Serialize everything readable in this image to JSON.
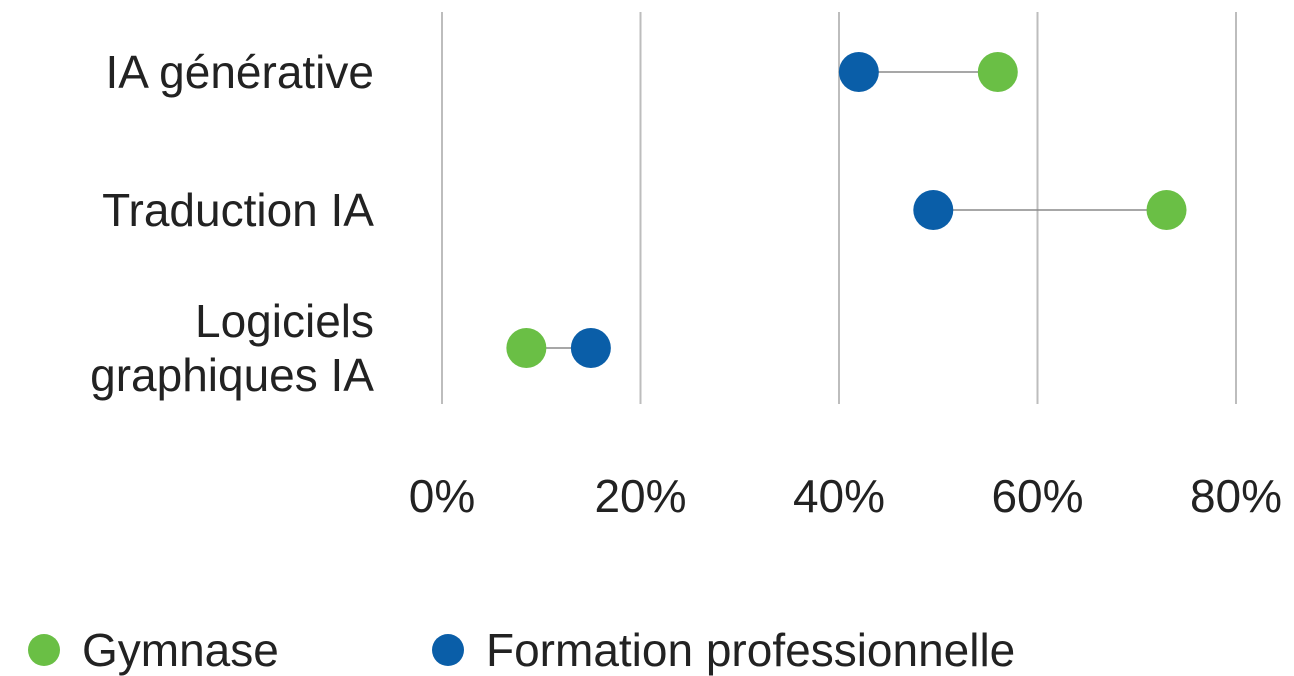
{
  "chart_data": {
    "type": "dot-plot",
    "categories": [
      "IA générative",
      "Traduction IA",
      "Logiciels graphiques IA"
    ],
    "category_lines": [
      [
        "IA générative"
      ],
      [
        "Traduction IA"
      ],
      [
        "Logiciels",
        "graphiques IA"
      ]
    ],
    "series": [
      {
        "name": "Gymnase",
        "color": "#6abf45",
        "values": [
          56,
          73,
          8.5
        ]
      },
      {
        "name": "Formation professionnelle",
        "color": "#0a5ea8",
        "values": [
          42,
          49.5,
          15
        ]
      }
    ],
    "x_ticks": [
      "0%",
      "20%",
      "40%",
      "60%",
      "80%"
    ],
    "x_tick_values": [
      0,
      20,
      40,
      60,
      80
    ],
    "xlim": [
      0,
      80
    ],
    "grid": true,
    "legend_position": "bottom-left"
  }
}
